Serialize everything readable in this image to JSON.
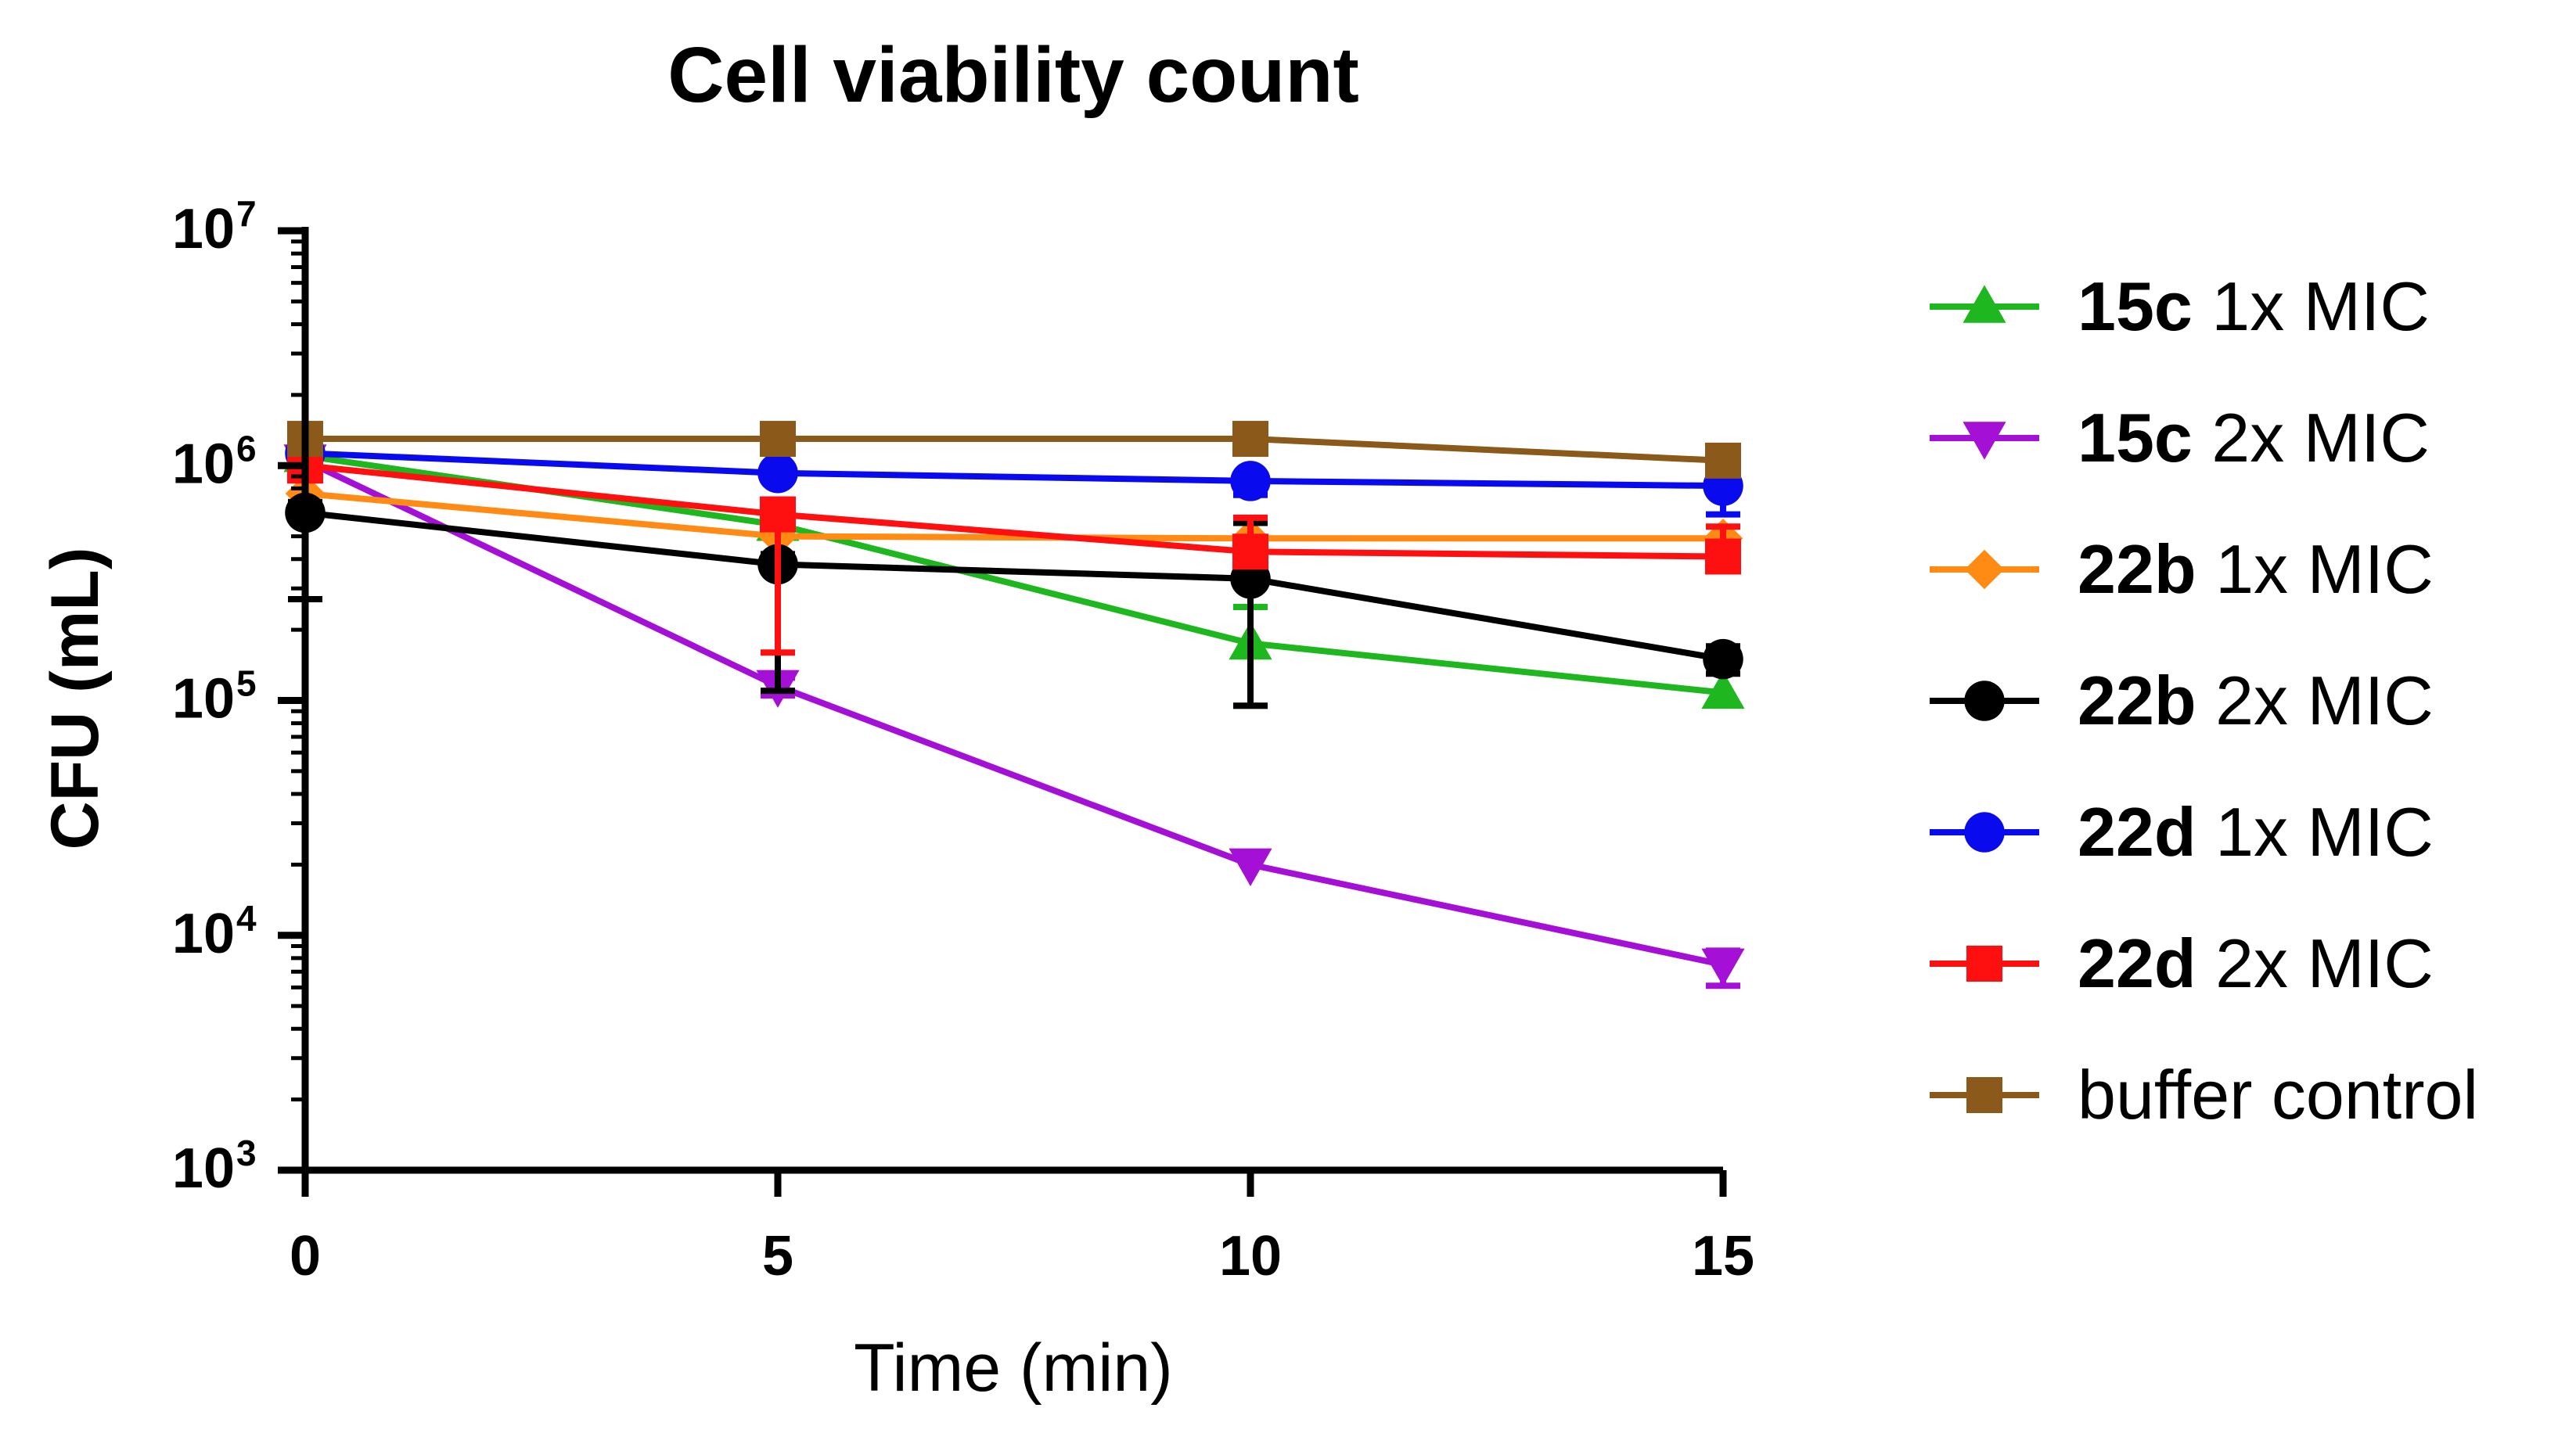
{
  "chart_data": {
    "type": "line",
    "title": "Cell viability count",
    "xlabel": "Time (min)",
    "ylabel": "CFU (mL)",
    "yscale": "log",
    "xlim": [
      0,
      15
    ],
    "ylim": [
      1000,
      10000000
    ],
    "x": [
      0,
      5,
      10,
      15
    ],
    "x_tick_labels": [
      "0",
      "5",
      "10",
      "15"
    ],
    "y_ticks": [
      {
        "base": "10",
        "exp": "3",
        "value": 1000
      },
      {
        "base": "10",
        "exp": "4",
        "value": 10000
      },
      {
        "base": "10",
        "exp": "5",
        "value": 100000
      },
      {
        "base": "10",
        "exp": "6",
        "value": 1000000
      },
      {
        "base": "10",
        "exp": "7",
        "value": 10000000
      }
    ],
    "legend_position": "right",
    "series": [
      {
        "bold": "15c",
        "rest": " 1x MIC",
        "name": "15c 1x MIC",
        "color": "#1fb71f",
        "marker": "triangle-up",
        "values": [
          1100000,
          560000,
          175000,
          108000
        ],
        "err_low": [
          null,
          500000,
          95000,
          null
        ],
        "err_high": [
          1350000,
          600000,
          250000,
          null
        ]
      },
      {
        "bold": "15c",
        "rest": " 2x MIC",
        "name": "15c 2x MIC",
        "color": "#a410d6",
        "marker": "triangle-down",
        "values": [
          1050000,
          115000,
          20000,
          7500
        ],
        "err_low": [
          null,
          105000,
          null,
          6100
        ],
        "err_high": [
          null,
          125000,
          null,
          8600
        ]
      },
      {
        "bold": "22b",
        "rest": " 1x MIC",
        "name": "22b 1x MIC",
        "color": "#ff8a14",
        "marker": "diamond",
        "values": [
          760000,
          500000,
          490000,
          490000
        ],
        "err_low": [
          600000,
          null,
          null,
          null
        ],
        "err_high": [
          900000,
          null,
          null,
          null
        ]
      },
      {
        "bold": "22b",
        "rest": " 2x MIC",
        "name": "22b 2x MIC",
        "color": "#000000",
        "marker": "circle",
        "values": [
          630000,
          380000,
          330000,
          150000
        ],
        "err_low": [
          270000,
          110000,
          95000,
          130000
        ],
        "err_high": [
          700000,
          420000,
          570000,
          170000
        ]
      },
      {
        "bold": "22d",
        "rest": " 1x MIC",
        "name": "22d 1x MIC",
        "color": "#0a0aef",
        "marker": "circle",
        "values": [
          1130000,
          930000,
          860000,
          820000
        ],
        "err_low": [
          null,
          null,
          750000,
          620000
        ],
        "err_high": [
          null,
          null,
          null,
          1000000
        ]
      },
      {
        "bold": "22d",
        "rest": " 2x MIC",
        "name": "22d 2x MIC",
        "color": "#ff1010",
        "marker": "square",
        "values": [
          1000000,
          620000,
          430000,
          410000
        ],
        "err_low": [
          null,
          160000,
          null,
          null
        ],
        "err_high": [
          null,
          null,
          600000,
          550000
        ]
      },
      {
        "bold": "",
        "rest": "buffer control",
        "name": "buffer control",
        "color": "#8b5a1a",
        "marker": "square",
        "values": [
          1300000,
          1300000,
          1300000,
          1050000
        ],
        "err_low": [
          null,
          null,
          null,
          null
        ],
        "err_high": [
          null,
          null,
          null,
          null
        ]
      }
    ]
  }
}
